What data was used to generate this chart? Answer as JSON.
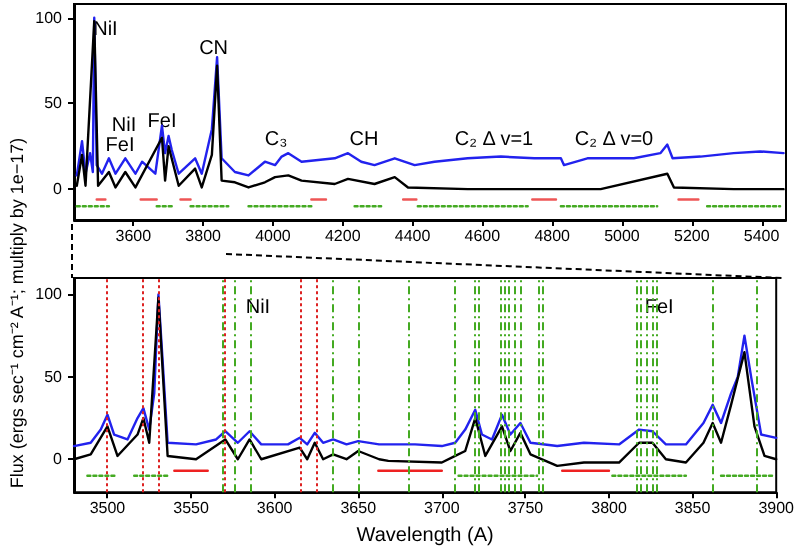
{
  "chart_data": [
    {
      "type": "line",
      "marker": "none",
      "line_style": "solid",
      "grid": false,
      "xlim": [
        3430,
        5470
      ],
      "xticks": [
        3600,
        3800,
        4000,
        4200,
        4400,
        4600,
        4800,
        5000,
        5200,
        5400
      ],
      "ylim": [
        -18,
        108
      ],
      "yticks": [
        0,
        50,
        100
      ],
      "annotations": [
        {
          "text": "NiI",
          "x": 3520,
          "y": 93
        },
        "NiI",
        "FeI",
        "FeI",
        {
          "text": "CN",
          "x": 3830,
          "y": 82
        },
        "C₃",
        "CH",
        "C₂ Δ v=1",
        "C₂ Δ v=0"
      ],
      "series": [
        {
          "color": "#2222ee",
          "x": [
            3438,
            3453,
            3463,
            3476,
            3484,
            3488,
            3495,
            3510,
            3530,
            3549,
            3577,
            3606,
            3625,
            3663,
            3682,
            3691,
            3701,
            3710,
            3730,
            3777,
            3796,
            3825,
            3840,
            3853,
            3891,
            3930,
            3977,
            4006,
            4025,
            4044,
            4082,
            4177,
            4215,
            4253,
            4291,
            4349,
            4406,
            4463,
            4558,
            4653,
            4749,
            4825,
            4834,
            4901,
            5034,
            5110,
            5130,
            5145,
            5225,
            5320,
            5396,
            5463
          ],
          "values": [
            8,
            28,
            9,
            21,
            10,
            100,
            14,
            9,
            18,
            9,
            18,
            9,
            16,
            9,
            37,
            21,
            31,
            23,
            9,
            18,
            9,
            35,
            77,
            18,
            10,
            8,
            16,
            14,
            19,
            21,
            16,
            18,
            21,
            16,
            14,
            18,
            14,
            16,
            18,
            19,
            18,
            18,
            14,
            18,
            18,
            21,
            26,
            18,
            19,
            21,
            22,
            21
          ]
        },
        {
          "color": "#000000",
          "x": [
            3438,
            3453,
            3463,
            3488,
            3499,
            3530,
            3549,
            3577,
            3606,
            3682,
            3691,
            3701,
            3730,
            3777,
            3796,
            3825,
            3840,
            3853,
            3891,
            3930,
            3977,
            4006,
            4044,
            4082,
            4177,
            4215,
            4291,
            4349,
            4387,
            4558,
            4939,
            5130,
            5149,
            5320,
            5463
          ],
          "values": [
            2,
            20,
            2,
            98,
            2,
            10,
            1,
            10,
            1,
            30,
            5,
            25,
            2,
            12,
            1,
            20,
            72,
            5,
            4,
            1,
            4,
            7,
            8,
            5,
            3,
            6,
            3,
            7,
            1,
            0,
            0,
            9,
            1,
            0,
            0
          ]
        },
        {
          "color": "#ee5555",
          "x": [
            3495,
            3520,
            3521,
            3621,
            3667,
            3668,
            3735,
            3764,
            3765,
            4110,
            4152,
            4153,
            4373,
            4411,
            4412,
            4743,
            4811,
            4812,
            5162,
            5219
          ],
          "values": [
            -6,
            -6,
            null,
            -6,
            -6,
            null,
            -6,
            -6,
            null,
            -6,
            -6,
            null,
            -6,
            -6,
            null,
            -6,
            -6,
            null,
            -6,
            -6
          ]
        },
        {
          "color": "#44aa22",
          "line_style": "dotted",
          "x": [
            3438,
            3530,
            3531,
            3667,
            3710,
            3711,
            3764,
            3872,
            3873,
            3930,
            4110,
            4111,
            4234,
            4310,
            4311,
            4415,
            4730,
            4731,
            4825,
            5101,
            5102,
            5244,
            5453
          ],
          "values": [
            -10,
            -10,
            null,
            -10,
            -10,
            null,
            -10,
            -10,
            null,
            -10,
            -10,
            null,
            -10,
            -10,
            null,
            -10,
            -10,
            null,
            -10,
            -10,
            null,
            -10,
            -10
          ]
        }
      ]
    },
    {
      "type": "line",
      "marker": "none",
      "line_style": "solid",
      "grid": false,
      "xlim": [
        3480,
        3900
      ],
      "xticks": [
        3500,
        3550,
        3600,
        3650,
        3700,
        3750,
        3800,
        3850,
        3900
      ],
      "ylim": [
        -20,
        110
      ],
      "yticks": [
        0,
        50,
        100
      ],
      "xlabel": "Wavelength (A)",
      "ylabel": "Flux (ergs sec⁻¹ cm⁻² A⁻¹; multiply by 1e−17)",
      "annotations": [
        {
          "text": "NiI",
          "x": 3590,
          "y": 92
        },
        {
          "text": "FeI",
          "x": 3830,
          "y": 92
        }
      ],
      "ref_lines": [
        {
          "axis": "x",
          "value": 3500,
          "color": "#dd2222",
          "line_style": "dotted"
        },
        {
          "axis": "x",
          "value": 3521.5,
          "color": "#dd2222",
          "line_style": "dotted"
        },
        {
          "axis": "x",
          "value": 3531,
          "color": "#dd2222",
          "line_style": "dotted"
        },
        {
          "axis": "x",
          "value": 3570.5,
          "color": "#dd2222",
          "line_style": "dotted"
        },
        {
          "axis": "x",
          "value": 3615,
          "color": "#dd2222",
          "line_style": "dotted"
        },
        {
          "axis": "x",
          "value": 3624.5,
          "color": "#dd2222",
          "line_style": "dotted"
        },
        {
          "axis": "x",
          "value": 3569,
          "color": "#44aa22",
          "line_style": "dashed"
        },
        {
          "axis": "x",
          "value": 3575.5,
          "color": "#44aa22",
          "line_style": "dashed"
        },
        {
          "axis": "x",
          "value": 3585,
          "color": "#44aa22",
          "line_style": "dashed"
        },
        {
          "axis": "x",
          "value": 3635,
          "color": "#44aa22",
          "line_style": "dashed"
        },
        {
          "axis": "x",
          "value": 3650,
          "color": "#44aa22",
          "line_style": "dashed"
        },
        {
          "axis": "x",
          "value": 3680,
          "color": "#44aa22",
          "line_style": "dashed"
        },
        {
          "axis": "x",
          "value": 3707,
          "color": "#44aa22",
          "line_style": "dashed"
        },
        {
          "axis": "x",
          "value": 3719.5,
          "color": "#44aa22",
          "line_style": "dashed"
        },
        {
          "axis": "x",
          "value": 3722,
          "color": "#44aa22",
          "line_style": "dashed"
        },
        {
          "axis": "x",
          "value": 3734.5,
          "color": "#44aa22",
          "line_style": "dashed"
        },
        {
          "axis": "x",
          "value": 3737,
          "color": "#44aa22",
          "line_style": "dashed"
        },
        {
          "axis": "x",
          "value": 3740,
          "color": "#44aa22",
          "line_style": "dashed"
        },
        {
          "axis": "x",
          "value": 3743,
          "color": "#44aa22",
          "line_style": "dashed"
        },
        {
          "axis": "x",
          "value": 3747,
          "color": "#44aa22",
          "line_style": "dashed"
        },
        {
          "axis": "x",
          "value": 3758,
          "color": "#44aa22",
          "line_style": "dashed"
        },
        {
          "axis": "x",
          "value": 3760,
          "color": "#44aa22",
          "line_style": "dashed"
        },
        {
          "axis": "x",
          "value": 3816,
          "color": "#44aa22",
          "line_style": "dashed"
        },
        {
          "axis": "x",
          "value": 3819,
          "color": "#44aa22",
          "line_style": "dashed"
        },
        {
          "axis": "x",
          "value": 3823,
          "color": "#44aa22",
          "line_style": "dashed"
        },
        {
          "axis": "x",
          "value": 3826,
          "color": "#44aa22",
          "line_style": "dashed"
        },
        {
          "axis": "x",
          "value": 3828.5,
          "color": "#44aa22",
          "line_style": "dashed"
        },
        {
          "axis": "x",
          "value": 3862,
          "color": "#44aa22",
          "line_style": "dashed"
        },
        {
          "axis": "x",
          "value": 3888,
          "color": "#44aa22",
          "line_style": "dashed"
        }
      ],
      "series": [
        {
          "color": "#2222ee",
          "x": [
            3480,
            3490,
            3496,
            3500,
            3504,
            3512,
            3518,
            3521.5,
            3525,
            3528,
            3530.5,
            3533,
            3536,
            3553,
            3565,
            3570.5,
            3578,
            3585,
            3592,
            3608,
            3615,
            3619.5,
            3624,
            3629,
            3635,
            3643,
            3650,
            3662.5,
            3684,
            3700,
            3708,
            3714,
            3720,
            3724,
            3730,
            3736,
            3741,
            3747,
            3753,
            3769,
            3785,
            3806,
            3818,
            3826,
            3834,
            3846,
            3856.5,
            3862,
            3867,
            3873,
            3877,
            3881,
            3885,
            3891,
            3900
          ],
          "values": [
            8,
            10,
            18,
            27,
            15,
            12,
            25,
            31,
            18,
            40,
            100,
            60,
            10,
            9,
            12,
            17,
            10,
            17,
            9,
            9,
            13,
            9,
            16,
            10,
            12,
            9,
            11,
            9,
            9,
            8,
            10,
            18,
            30,
            15,
            12,
            27,
            15,
            22,
            10,
            8,
            10,
            9,
            18,
            17,
            9,
            9,
            22,
            33,
            22,
            40,
            50,
            75,
            50,
            15,
            13
          ]
        },
        {
          "color": "#000000",
          "x": [
            3480,
            3490,
            3500,
            3506,
            3518,
            3521.5,
            3525,
            3530.5,
            3536,
            3553,
            3570.5,
            3578,
            3585,
            3592,
            3615,
            3619.5,
            3624,
            3629,
            3635,
            3643,
            3650,
            3662.5,
            3668,
            3700,
            3708,
            3714,
            3720,
            3726,
            3736,
            3741,
            3747,
            3753,
            3769,
            3785,
            3806,
            3818,
            3826,
            3834,
            3846,
            3856.5,
            3862,
            3867,
            3873,
            3881,
            3887,
            3893,
            3900
          ],
          "values": [
            0,
            3,
            20,
            2,
            15,
            25,
            10,
            98,
            2,
            0,
            12,
            0,
            12,
            0,
            7,
            0,
            10,
            0,
            3,
            0,
            5,
            0,
            -1,
            -2,
            2,
            5,
            25,
            2,
            20,
            5,
            16,
            3,
            -4,
            -2,
            -2,
            10,
            10,
            0,
            -2,
            10,
            22,
            10,
            33,
            65,
            20,
            2,
            0
          ]
        },
        {
          "color": "#ee2222",
          "x": [
            3540,
            3560,
            3561,
            3662,
            3700,
            3701,
            3772,
            3800
          ],
          "values": [
            -7,
            -7,
            null,
            -7,
            -7,
            null,
            -7,
            -7
          ]
        },
        {
          "color": "#44aa22",
          "line_style": "dotted",
          "x": [
            3488,
            3505,
            3506,
            3516,
            3537,
            3538,
            3710,
            3757,
            3758,
            3802,
            3846,
            3847,
            3867,
            3899
          ],
          "values": [
            -10,
            -10,
            null,
            -10,
            -10,
            null,
            -10,
            -10,
            null,
            -10,
            -10,
            null,
            -10,
            -10
          ]
        }
      ]
    }
  ]
}
